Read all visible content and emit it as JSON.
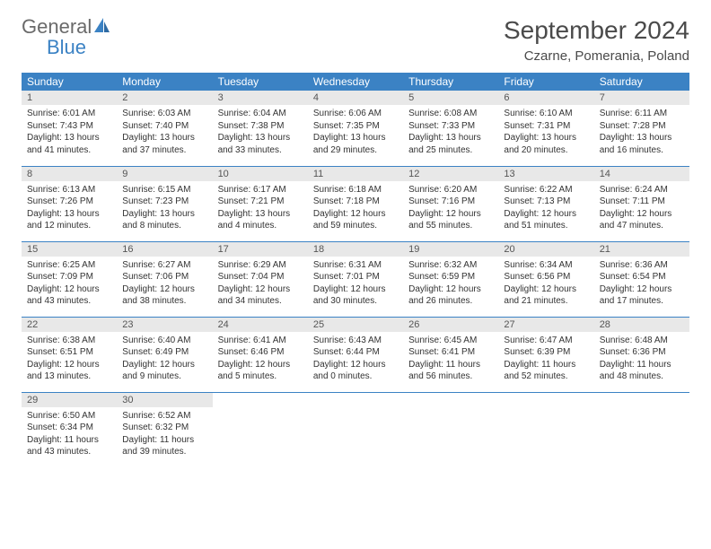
{
  "logo": {
    "line1": "General",
    "line2": "Blue"
  },
  "title": "September 2024",
  "location": "Czarne, Pomerania, Poland",
  "colors": {
    "header_bg": "#3b82c4",
    "header_text": "#ffffff",
    "daynum_bg": "#e8e8e8",
    "border": "#3b82c4",
    "logo_gray": "#6a6a6a",
    "logo_blue": "#3b82c4"
  },
  "day_headers": [
    "Sunday",
    "Monday",
    "Tuesday",
    "Wednesday",
    "Thursday",
    "Friday",
    "Saturday"
  ],
  "weeks": [
    [
      {
        "n": "1",
        "sr": "6:01 AM",
        "ss": "7:43 PM",
        "dl": "13 hours and 41 minutes."
      },
      {
        "n": "2",
        "sr": "6:03 AM",
        "ss": "7:40 PM",
        "dl": "13 hours and 37 minutes."
      },
      {
        "n": "3",
        "sr": "6:04 AM",
        "ss": "7:38 PM",
        "dl": "13 hours and 33 minutes."
      },
      {
        "n": "4",
        "sr": "6:06 AM",
        "ss": "7:35 PM",
        "dl": "13 hours and 29 minutes."
      },
      {
        "n": "5",
        "sr": "6:08 AM",
        "ss": "7:33 PM",
        "dl": "13 hours and 25 minutes."
      },
      {
        "n": "6",
        "sr": "6:10 AM",
        "ss": "7:31 PM",
        "dl": "13 hours and 20 minutes."
      },
      {
        "n": "7",
        "sr": "6:11 AM",
        "ss": "7:28 PM",
        "dl": "13 hours and 16 minutes."
      }
    ],
    [
      {
        "n": "8",
        "sr": "6:13 AM",
        "ss": "7:26 PM",
        "dl": "13 hours and 12 minutes."
      },
      {
        "n": "9",
        "sr": "6:15 AM",
        "ss": "7:23 PM",
        "dl": "13 hours and 8 minutes."
      },
      {
        "n": "10",
        "sr": "6:17 AM",
        "ss": "7:21 PM",
        "dl": "13 hours and 4 minutes."
      },
      {
        "n": "11",
        "sr": "6:18 AM",
        "ss": "7:18 PM",
        "dl": "12 hours and 59 minutes."
      },
      {
        "n": "12",
        "sr": "6:20 AM",
        "ss": "7:16 PM",
        "dl": "12 hours and 55 minutes."
      },
      {
        "n": "13",
        "sr": "6:22 AM",
        "ss": "7:13 PM",
        "dl": "12 hours and 51 minutes."
      },
      {
        "n": "14",
        "sr": "6:24 AM",
        "ss": "7:11 PM",
        "dl": "12 hours and 47 minutes."
      }
    ],
    [
      {
        "n": "15",
        "sr": "6:25 AM",
        "ss": "7:09 PM",
        "dl": "12 hours and 43 minutes."
      },
      {
        "n": "16",
        "sr": "6:27 AM",
        "ss": "7:06 PM",
        "dl": "12 hours and 38 minutes."
      },
      {
        "n": "17",
        "sr": "6:29 AM",
        "ss": "7:04 PM",
        "dl": "12 hours and 34 minutes."
      },
      {
        "n": "18",
        "sr": "6:31 AM",
        "ss": "7:01 PM",
        "dl": "12 hours and 30 minutes."
      },
      {
        "n": "19",
        "sr": "6:32 AM",
        "ss": "6:59 PM",
        "dl": "12 hours and 26 minutes."
      },
      {
        "n": "20",
        "sr": "6:34 AM",
        "ss": "6:56 PM",
        "dl": "12 hours and 21 minutes."
      },
      {
        "n": "21",
        "sr": "6:36 AM",
        "ss": "6:54 PM",
        "dl": "12 hours and 17 minutes."
      }
    ],
    [
      {
        "n": "22",
        "sr": "6:38 AM",
        "ss": "6:51 PM",
        "dl": "12 hours and 13 minutes."
      },
      {
        "n": "23",
        "sr": "6:40 AM",
        "ss": "6:49 PM",
        "dl": "12 hours and 9 minutes."
      },
      {
        "n": "24",
        "sr": "6:41 AM",
        "ss": "6:46 PM",
        "dl": "12 hours and 5 minutes."
      },
      {
        "n": "25",
        "sr": "6:43 AM",
        "ss": "6:44 PM",
        "dl": "12 hours and 0 minutes."
      },
      {
        "n": "26",
        "sr": "6:45 AM",
        "ss": "6:41 PM",
        "dl": "11 hours and 56 minutes."
      },
      {
        "n": "27",
        "sr": "6:47 AM",
        "ss": "6:39 PM",
        "dl": "11 hours and 52 minutes."
      },
      {
        "n": "28",
        "sr": "6:48 AM",
        "ss": "6:36 PM",
        "dl": "11 hours and 48 minutes."
      }
    ],
    [
      {
        "n": "29",
        "sr": "6:50 AM",
        "ss": "6:34 PM",
        "dl": "11 hours and 43 minutes."
      },
      {
        "n": "30",
        "sr": "6:52 AM",
        "ss": "6:32 PM",
        "dl": "11 hours and 39 minutes."
      },
      null,
      null,
      null,
      null,
      null
    ]
  ],
  "labels": {
    "sunrise": "Sunrise:",
    "sunset": "Sunset:",
    "daylight": "Daylight:"
  }
}
